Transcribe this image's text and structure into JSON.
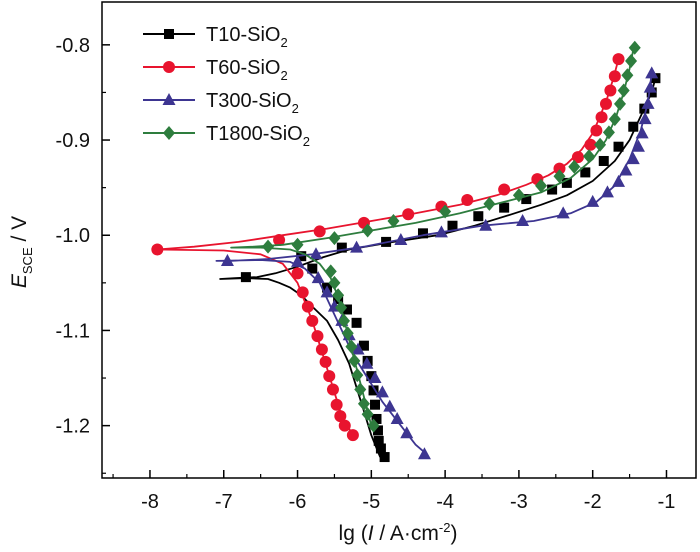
{
  "chart_data": {
    "type": "line",
    "xlabel": {
      "prefix": "lg (",
      "italic": "I",
      "middle": " / A·cm",
      "sup": "-2",
      "suffix": ")"
    },
    "ylabel": {
      "italic": "E",
      "sub": "SCE",
      "suffix": " / V"
    },
    "xlim": [
      -8.65,
      -0.6
    ],
    "ylim": [
      -1.255,
      -0.755
    ],
    "xticks": [
      -8,
      -7,
      -6,
      -5,
      -4,
      -3,
      -2,
      -1
    ],
    "xtick_labels": [
      "-8",
      "-7",
      "-6",
      "-5",
      "-4",
      "-3",
      "-2",
      "-1"
    ],
    "yticks": [
      -0.8,
      -0.9,
      -1.0,
      -1.1,
      -1.2
    ],
    "ytick_labels": [
      "-0.8",
      "-0.9",
      "-1.0",
      "-1.1",
      "-1.2"
    ],
    "legend_position": "top-left",
    "series": [
      {
        "name": "T10-SiO2",
        "label_main": "T10-SiO",
        "label_sub": "2",
        "color": "#000000",
        "marker": "square",
        "line": [
          [
            -1.15,
            -0.835
          ],
          [
            -1.2,
            -0.85
          ],
          [
            -1.35,
            -0.875
          ],
          [
            -1.5,
            -0.9
          ],
          [
            -1.7,
            -0.922
          ],
          [
            -2.0,
            -0.943
          ],
          [
            -2.35,
            -0.958
          ],
          [
            -2.7,
            -0.968
          ],
          [
            -3.1,
            -0.978
          ],
          [
            -3.6,
            -0.99
          ],
          [
            -4.1,
            -1.0
          ],
          [
            -4.7,
            -1.007
          ],
          [
            -5.3,
            -1.015
          ],
          [
            -5.65,
            -1.023
          ],
          [
            -6.0,
            -1.033
          ],
          [
            -6.3,
            -1.04
          ],
          [
            -6.55,
            -1.044
          ],
          [
            -6.85,
            -1.045
          ],
          [
            -7.05,
            -1.046
          ],
          [
            -6.7,
            -1.045
          ],
          [
            -6.4,
            -1.046
          ],
          [
            -6.25,
            -1.05
          ],
          [
            -6.1,
            -1.055
          ],
          [
            -5.95,
            -1.063
          ],
          [
            -5.8,
            -1.075
          ],
          [
            -5.6,
            -1.09
          ],
          [
            -5.45,
            -1.11
          ],
          [
            -5.3,
            -1.135
          ],
          [
            -5.2,
            -1.16
          ],
          [
            -5.1,
            -1.185
          ],
          [
            -5.0,
            -1.21
          ],
          [
            -4.88,
            -1.233
          ]
        ],
        "markers": [
          [
            -1.15,
            -0.835
          ],
          [
            -1.2,
            -0.85
          ],
          [
            -1.3,
            -0.867
          ],
          [
            -1.45,
            -0.886
          ],
          [
            -1.65,
            -0.907
          ],
          [
            -1.85,
            -0.922
          ],
          [
            -2.1,
            -0.934
          ],
          [
            -2.35,
            -0.945
          ],
          [
            -2.55,
            -0.952
          ],
          [
            -2.9,
            -0.962
          ],
          [
            -3.2,
            -0.971
          ],
          [
            -3.55,
            -0.98
          ],
          [
            -3.9,
            -0.99
          ],
          [
            -4.3,
            -0.998
          ],
          [
            -4.8,
            -1.007
          ],
          [
            -5.4,
            -1.013
          ],
          [
            -5.95,
            -1.022
          ],
          [
            -6.7,
            -1.044
          ],
          [
            -5.8,
            -1.035
          ],
          [
            -5.6,
            -1.055
          ],
          [
            -5.45,
            -1.067
          ],
          [
            -5.33,
            -1.078
          ],
          [
            -5.2,
            -1.092
          ],
          [
            -5.1,
            -1.116
          ],
          [
            -5.05,
            -1.132
          ],
          [
            -5.0,
            -1.148
          ],
          [
            -4.97,
            -1.163
          ],
          [
            -4.95,
            -1.178
          ],
          [
            -4.93,
            -1.193
          ],
          [
            -4.91,
            -1.205
          ],
          [
            -4.9,
            -1.216
          ],
          [
            -4.87,
            -1.224
          ],
          [
            -4.82,
            -1.233
          ]
        ]
      },
      {
        "name": "T60-SiO2",
        "label_main": "T60-SiO",
        "label_sub": "2",
        "color": "#e8142e",
        "marker": "circle",
        "line": [
          [
            -1.65,
            -0.815
          ],
          [
            -1.72,
            -0.835
          ],
          [
            -1.8,
            -0.855
          ],
          [
            -1.9,
            -0.875
          ],
          [
            -2.0,
            -0.893
          ],
          [
            -2.15,
            -0.91
          ],
          [
            -2.35,
            -0.925
          ],
          [
            -2.6,
            -0.937
          ],
          [
            -2.9,
            -0.947
          ],
          [
            -3.3,
            -0.958
          ],
          [
            -3.8,
            -0.968
          ],
          [
            -4.4,
            -0.977
          ],
          [
            -5.0,
            -0.985
          ],
          [
            -5.6,
            -0.993
          ],
          [
            -6.2,
            -1.0
          ],
          [
            -6.8,
            -1.007
          ],
          [
            -7.4,
            -1.012
          ],
          [
            -7.9,
            -1.015
          ],
          [
            -7.0,
            -1.016
          ],
          [
            -6.5,
            -1.02
          ],
          [
            -6.2,
            -1.03
          ],
          [
            -6.0,
            -1.05
          ],
          [
            -5.9,
            -1.07
          ],
          [
            -5.8,
            -1.09
          ],
          [
            -5.7,
            -1.115
          ],
          [
            -5.6,
            -1.14
          ],
          [
            -5.5,
            -1.165
          ],
          [
            -5.4,
            -1.19
          ],
          [
            -5.25,
            -1.21
          ]
        ],
        "markers": [
          [
            -1.65,
            -0.815
          ],
          [
            -1.7,
            -0.833
          ],
          [
            -1.76,
            -0.848
          ],
          [
            -1.82,
            -0.862
          ],
          [
            -1.88,
            -0.876
          ],
          [
            -1.95,
            -0.89
          ],
          [
            -2.03,
            -0.905
          ],
          [
            -2.2,
            -0.918
          ],
          [
            -2.45,
            -0.93
          ],
          [
            -2.75,
            -0.941
          ],
          [
            -3.2,
            -0.952
          ],
          [
            -3.7,
            -0.963
          ],
          [
            -4.05,
            -0.97
          ],
          [
            -4.5,
            -0.978
          ],
          [
            -5.1,
            -0.987
          ],
          [
            -5.7,
            -0.996
          ],
          [
            -6.25,
            -1.005
          ],
          [
            -7.9,
            -1.015
          ],
          [
            -6.0,
            -1.04
          ],
          [
            -5.93,
            -1.06
          ],
          [
            -5.86,
            -1.075
          ],
          [
            -5.8,
            -1.09
          ],
          [
            -5.73,
            -1.106
          ],
          [
            -5.67,
            -1.12
          ],
          [
            -5.62,
            -1.133
          ],
          [
            -5.57,
            -1.148
          ],
          [
            -5.52,
            -1.162
          ],
          [
            -5.47,
            -1.178
          ],
          [
            -5.42,
            -1.19
          ],
          [
            -5.36,
            -1.2
          ],
          [
            -5.25,
            -1.21
          ]
        ]
      },
      {
        "name": "T300-SiO2",
        "label_main": "T300-SiO",
        "label_sub": "2",
        "color": "#3d3591",
        "marker": "triangle",
        "line": [
          [
            -1.2,
            -0.83
          ],
          [
            -1.25,
            -0.86
          ],
          [
            -1.35,
            -0.89
          ],
          [
            -1.5,
            -0.92
          ],
          [
            -1.7,
            -0.948
          ],
          [
            -1.95,
            -0.965
          ],
          [
            -2.3,
            -0.977
          ],
          [
            -2.8,
            -0.985
          ],
          [
            -3.5,
            -0.99
          ],
          [
            -4.3,
            -1.0
          ],
          [
            -5.1,
            -1.012
          ],
          [
            -5.8,
            -1.02
          ],
          [
            -6.4,
            -1.025
          ],
          [
            -6.9,
            -1.027
          ],
          [
            -7.1,
            -1.027
          ],
          [
            -6.5,
            -1.026
          ],
          [
            -6.1,
            -1.028
          ],
          [
            -5.9,
            -1.035
          ],
          [
            -5.7,
            -1.05
          ],
          [
            -5.55,
            -1.075
          ],
          [
            -5.4,
            -1.1
          ],
          [
            -5.25,
            -1.125
          ],
          [
            -5.05,
            -1.15
          ],
          [
            -4.85,
            -1.175
          ],
          [
            -4.6,
            -1.2
          ],
          [
            -4.4,
            -1.22
          ],
          [
            -4.25,
            -1.23
          ]
        ],
        "markers": [
          [
            -1.2,
            -0.83
          ],
          [
            -1.22,
            -0.845
          ],
          [
            -1.25,
            -0.862
          ],
          [
            -1.29,
            -0.878
          ],
          [
            -1.33,
            -0.893
          ],
          [
            -1.38,
            -0.907
          ],
          [
            -1.45,
            -0.92
          ],
          [
            -1.55,
            -0.932
          ],
          [
            -1.65,
            -0.944
          ],
          [
            -1.8,
            -0.955
          ],
          [
            -2.0,
            -0.965
          ],
          [
            -2.4,
            -0.977
          ],
          [
            -2.95,
            -0.985
          ],
          [
            -3.45,
            -0.99
          ],
          [
            -4.05,
            -0.997
          ],
          [
            -4.6,
            -1.005
          ],
          [
            -5.2,
            -1.013
          ],
          [
            -5.75,
            -1.02
          ],
          [
            -6.0,
            -1.028
          ],
          [
            -6.95,
            -1.027
          ],
          [
            -5.72,
            -1.045
          ],
          [
            -5.6,
            -1.06
          ],
          [
            -5.5,
            -1.075
          ],
          [
            -5.4,
            -1.09
          ],
          [
            -5.3,
            -1.105
          ],
          [
            -5.18,
            -1.12
          ],
          [
            -5.06,
            -1.135
          ],
          [
            -4.95,
            -1.15
          ],
          [
            -4.85,
            -1.165
          ],
          [
            -4.75,
            -1.18
          ],
          [
            -4.65,
            -1.193
          ],
          [
            -4.52,
            -1.208
          ],
          [
            -4.28,
            -1.23
          ]
        ]
      },
      {
        "name": "T1800-SiO2",
        "label_main": "T1800-SiO",
        "label_sub": "2",
        "color": "#2e7d3e",
        "marker": "diamond",
        "line": [
          [
            -1.45,
            -0.805
          ],
          [
            -1.5,
            -0.825
          ],
          [
            -1.58,
            -0.85
          ],
          [
            -1.68,
            -0.875
          ],
          [
            -1.82,
            -0.9
          ],
          [
            -2.0,
            -0.92
          ],
          [
            -2.3,
            -0.94
          ],
          [
            -2.7,
            -0.955
          ],
          [
            -3.2,
            -0.965
          ],
          [
            -3.8,
            -0.977
          ],
          [
            -4.4,
            -0.987
          ],
          [
            -5.0,
            -0.995
          ],
          [
            -5.6,
            -1.003
          ],
          [
            -6.2,
            -1.01
          ],
          [
            -6.6,
            -1.012
          ],
          [
            -6.9,
            -1.013
          ],
          [
            -6.5,
            -1.013
          ],
          [
            -6.1,
            -1.015
          ],
          [
            -5.9,
            -1.02
          ],
          [
            -5.7,
            -1.03
          ],
          [
            -5.55,
            -1.045
          ],
          [
            -5.45,
            -1.065
          ],
          [
            -5.38,
            -1.085
          ],
          [
            -5.3,
            -1.11
          ],
          [
            -5.2,
            -1.14
          ],
          [
            -5.1,
            -1.17
          ],
          [
            -5.0,
            -1.2
          ]
        ],
        "markers": [
          [
            -1.43,
            -0.803
          ],
          [
            -1.48,
            -0.817
          ],
          [
            -1.53,
            -0.832
          ],
          [
            -1.58,
            -0.848
          ],
          [
            -1.63,
            -0.862
          ],
          [
            -1.7,
            -0.878
          ],
          [
            -1.78,
            -0.892
          ],
          [
            -1.9,
            -0.905
          ],
          [
            -2.05,
            -0.917
          ],
          [
            -2.25,
            -0.928
          ],
          [
            -2.45,
            -0.938
          ],
          [
            -2.7,
            -0.948
          ],
          [
            -3.0,
            -0.958
          ],
          [
            -3.4,
            -0.967
          ],
          [
            -4.0,
            -0.975
          ],
          [
            -4.7,
            -0.985
          ],
          [
            -5.05,
            -0.995
          ],
          [
            -5.5,
            -1.003
          ],
          [
            -6.0,
            -1.01
          ],
          [
            -6.4,
            -1.012
          ],
          [
            -5.55,
            -1.038
          ],
          [
            -5.5,
            -1.05
          ],
          [
            -5.45,
            -1.063
          ],
          [
            -5.41,
            -1.076
          ],
          [
            -5.37,
            -1.09
          ],
          [
            -5.32,
            -1.103
          ],
          [
            -5.27,
            -1.117
          ],
          [
            -5.23,
            -1.132
          ],
          [
            -5.19,
            -1.147
          ],
          [
            -5.15,
            -1.162
          ],
          [
            -5.1,
            -1.177
          ],
          [
            -5.05,
            -1.188
          ],
          [
            -4.97,
            -1.2
          ]
        ]
      }
    ]
  }
}
